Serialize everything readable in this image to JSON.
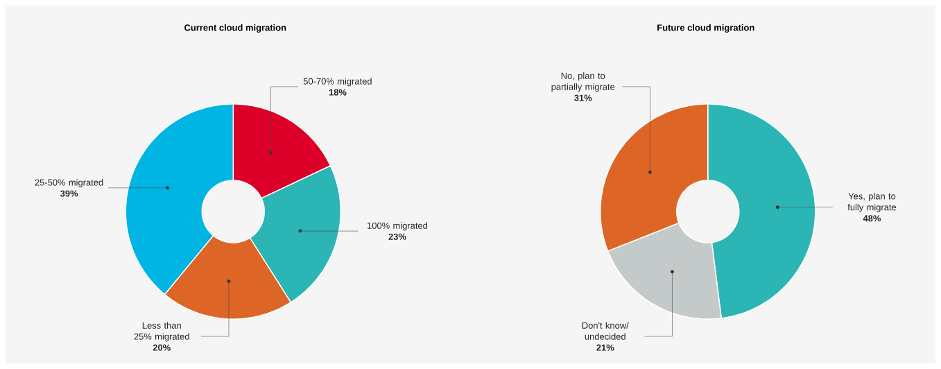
{
  "chart_data": [
    {
      "type": "donut",
      "title": "Current cloud migration",
      "categories": [
        "50-70% migrated",
        "100% migrated",
        "Less than 25% migrated",
        "25-50% migrated"
      ],
      "values": [
        18,
        23,
        20,
        39
      ],
      "colors": [
        "#dc0029",
        "#2cb5b5",
        "#dd6526",
        "#00b4e4"
      ],
      "value_labels": [
        "18%",
        "23%",
        "20%",
        "39%"
      ]
    },
    {
      "type": "donut",
      "title": "Future cloud migration",
      "categories": [
        "Yes, plan to fully migrate",
        "Don't know/ undecided",
        "No, plan to partially migrate"
      ],
      "values": [
        48,
        21,
        31
      ],
      "colors": [
        "#2cb5b5",
        "#c4c9c9",
        "#dd6526"
      ],
      "value_labels": [
        "48%",
        "21%",
        "31%"
      ]
    }
  ]
}
